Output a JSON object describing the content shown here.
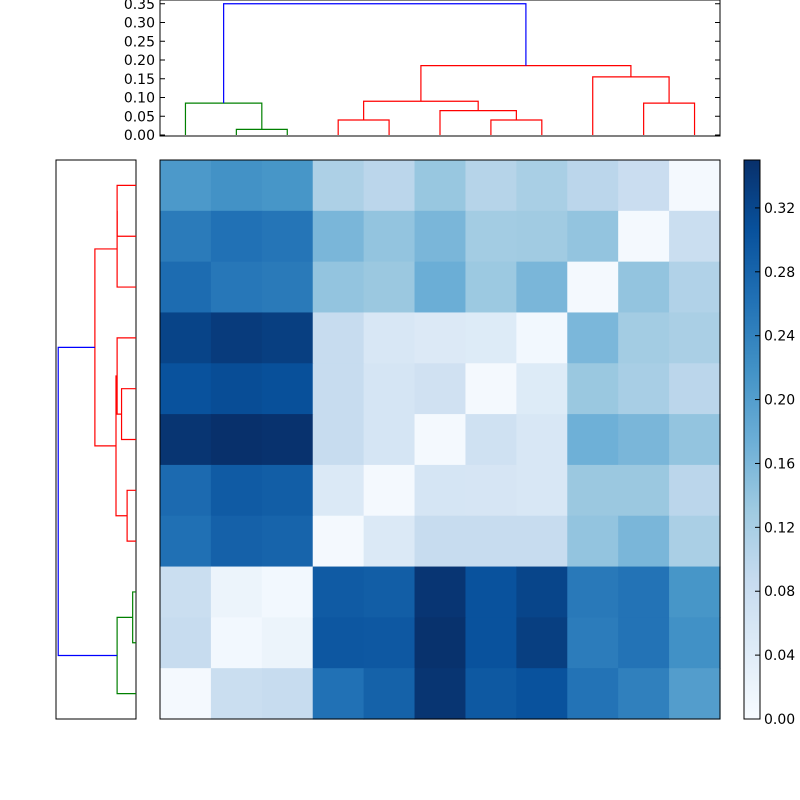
{
  "chart_data": {
    "type": "heatmap",
    "title": "",
    "xlabel": "",
    "ylabel": "",
    "grid": false,
    "matrix": [
      [
        0.208,
        0.218,
        0.213,
        0.115,
        0.1,
        0.136,
        0.105,
        0.119,
        0.1,
        0.081,
        0.005
      ],
      [
        0.249,
        0.262,
        0.257,
        0.162,
        0.141,
        0.162,
        0.126,
        0.128,
        0.141,
        0.005,
        0.08
      ],
      [
        0.269,
        0.254,
        0.251,
        0.141,
        0.134,
        0.175,
        0.133,
        0.162,
        0.005,
        0.141,
        0.11
      ],
      [
        0.324,
        0.335,
        0.33,
        0.085,
        0.055,
        0.048,
        0.045,
        0.008,
        0.161,
        0.126,
        0.118
      ],
      [
        0.305,
        0.312,
        0.308,
        0.085,
        0.06,
        0.07,
        0.005,
        0.045,
        0.135,
        0.12,
        0.1
      ],
      [
        0.344,
        0.352,
        0.347,
        0.085,
        0.06,
        0.005,
        0.071,
        0.055,
        0.172,
        0.162,
        0.141
      ],
      [
        0.272,
        0.292,
        0.288,
        0.05,
        0.005,
        0.06,
        0.059,
        0.055,
        0.134,
        0.134,
        0.1
      ],
      [
        0.264,
        0.284,
        0.28,
        0.005,
        0.05,
        0.085,
        0.085,
        0.085,
        0.141,
        0.162,
        0.118
      ],
      [
        0.08,
        0.02,
        0.008,
        0.292,
        0.289,
        0.343,
        0.305,
        0.322,
        0.252,
        0.26,
        0.213
      ],
      [
        0.085,
        0.008,
        0.02,
        0.298,
        0.296,
        0.348,
        0.305,
        0.33,
        0.248,
        0.26,
        0.22
      ],
      [
        0.005,
        0.08,
        0.085,
        0.262,
        0.283,
        0.344,
        0.295,
        0.305,
        0.26,
        0.243,
        0.201
      ]
    ],
    "colormap": [
      "#f7fbff",
      "#deebf7",
      "#c6dbef",
      "#9ecae1",
      "#6baed6",
      "#4292c6",
      "#2171b5",
      "#08519c",
      "#08306b"
    ],
    "color_range": [
      0,
      0.35
    ],
    "colorbar_ticks": [
      "0.00",
      "0.04",
      "0.08",
      "0.12",
      "0.16",
      "0.20",
      "0.24",
      "0.28",
      "0.32"
    ],
    "top_dendrogram": {
      "yticks": [
        "0.00",
        "0.05",
        "0.10",
        "0.15",
        "0.20",
        "0.25",
        "0.30",
        "0.35"
      ],
      "ylim": [
        0,
        0.36
      ],
      "links": [
        {
          "a": 1.5,
          "b": 2.5,
          "ha": 0,
          "hb": 0,
          "h": 0.015,
          "color": "#008000"
        },
        {
          "a": 0.5,
          "b": 2,
          "ha": 0,
          "hb": 0.015,
          "h": 0.085,
          "color": "#008000"
        },
        {
          "a": 3.5,
          "b": 4.5,
          "ha": 0,
          "hb": 0,
          "h": 0.04,
          "color": "#ff0000"
        },
        {
          "a": 6.5,
          "b": 7.5,
          "ha": 0,
          "hb": 0,
          "h": 0.04,
          "color": "#ff0000"
        },
        {
          "a": 5.5,
          "b": 7,
          "ha": 0,
          "hb": 0.04,
          "h": 0.065,
          "color": "#ff0000"
        },
        {
          "a": 4,
          "b": 6.25,
          "ha": 0.04,
          "hb": 0.065,
          "h": 0.09,
          "color": "#ff0000"
        },
        {
          "a": 9.5,
          "b": 10.5,
          "ha": 0,
          "hb": 0,
          "h": 0.085,
          "color": "#ff0000"
        },
        {
          "a": 8.5,
          "b": 10,
          "ha": 0,
          "hb": 0.085,
          "h": 0.155,
          "color": "#ff0000"
        },
        {
          "a": 5.125,
          "b": 9.25,
          "ha": 0.09,
          "hb": 0.155,
          "h": 0.185,
          "color": "#ff0000"
        },
        {
          "a": 1.25,
          "b": 7.1875,
          "ha": 0.085,
          "hb": 0.185,
          "h": 0.35,
          "color": "#0000ff"
        }
      ]
    },
    "left_dendrogram": {
      "xlim": [
        0,
        0.36
      ],
      "links": [
        {
          "a": 0.5,
          "b": 1.5,
          "ha": 0,
          "hb": 0,
          "h": 0.085,
          "color": "#ff0000"
        },
        {
          "a": 1,
          "b": 2.5,
          "ha": 0.085,
          "hb": 0,
          "h": 0.085,
          "color": "#ff0000"
        },
        {
          "a": 4.5,
          "b": 5.5,
          "ha": 0,
          "hb": 0,
          "h": 0.065,
          "color": "#ff0000"
        },
        {
          "a": 3.5,
          "b": 5,
          "ha": 0,
          "hb": 0.065,
          "h": 0.085,
          "color": "#ff0000"
        },
        {
          "a": 6.5,
          "b": 7.5,
          "ha": 0,
          "hb": 0,
          "h": 0.04,
          "color": "#ff0000"
        },
        {
          "a": 4.25,
          "b": 7,
          "ha": 0.085,
          "hb": 0.04,
          "h": 0.09,
          "color": "#ff0000"
        },
        {
          "a": 1.75,
          "b": 5.625,
          "ha": 0.085,
          "hb": 0.09,
          "h": 0.185,
          "color": "#ff0000"
        },
        {
          "a": 9.5,
          "b": 8.5,
          "ha": 0,
          "hb": 0,
          "h": 0.015,
          "color": "#008000"
        },
        {
          "a": 9,
          "b": 10.5,
          "ha": 0.015,
          "hb": 0,
          "h": 0.085,
          "color": "#008000"
        },
        {
          "a": 3.6875,
          "b": 9.75,
          "ha": 0.185,
          "hb": 0.085,
          "h": 0.35,
          "color": "#0000ff"
        }
      ]
    }
  }
}
